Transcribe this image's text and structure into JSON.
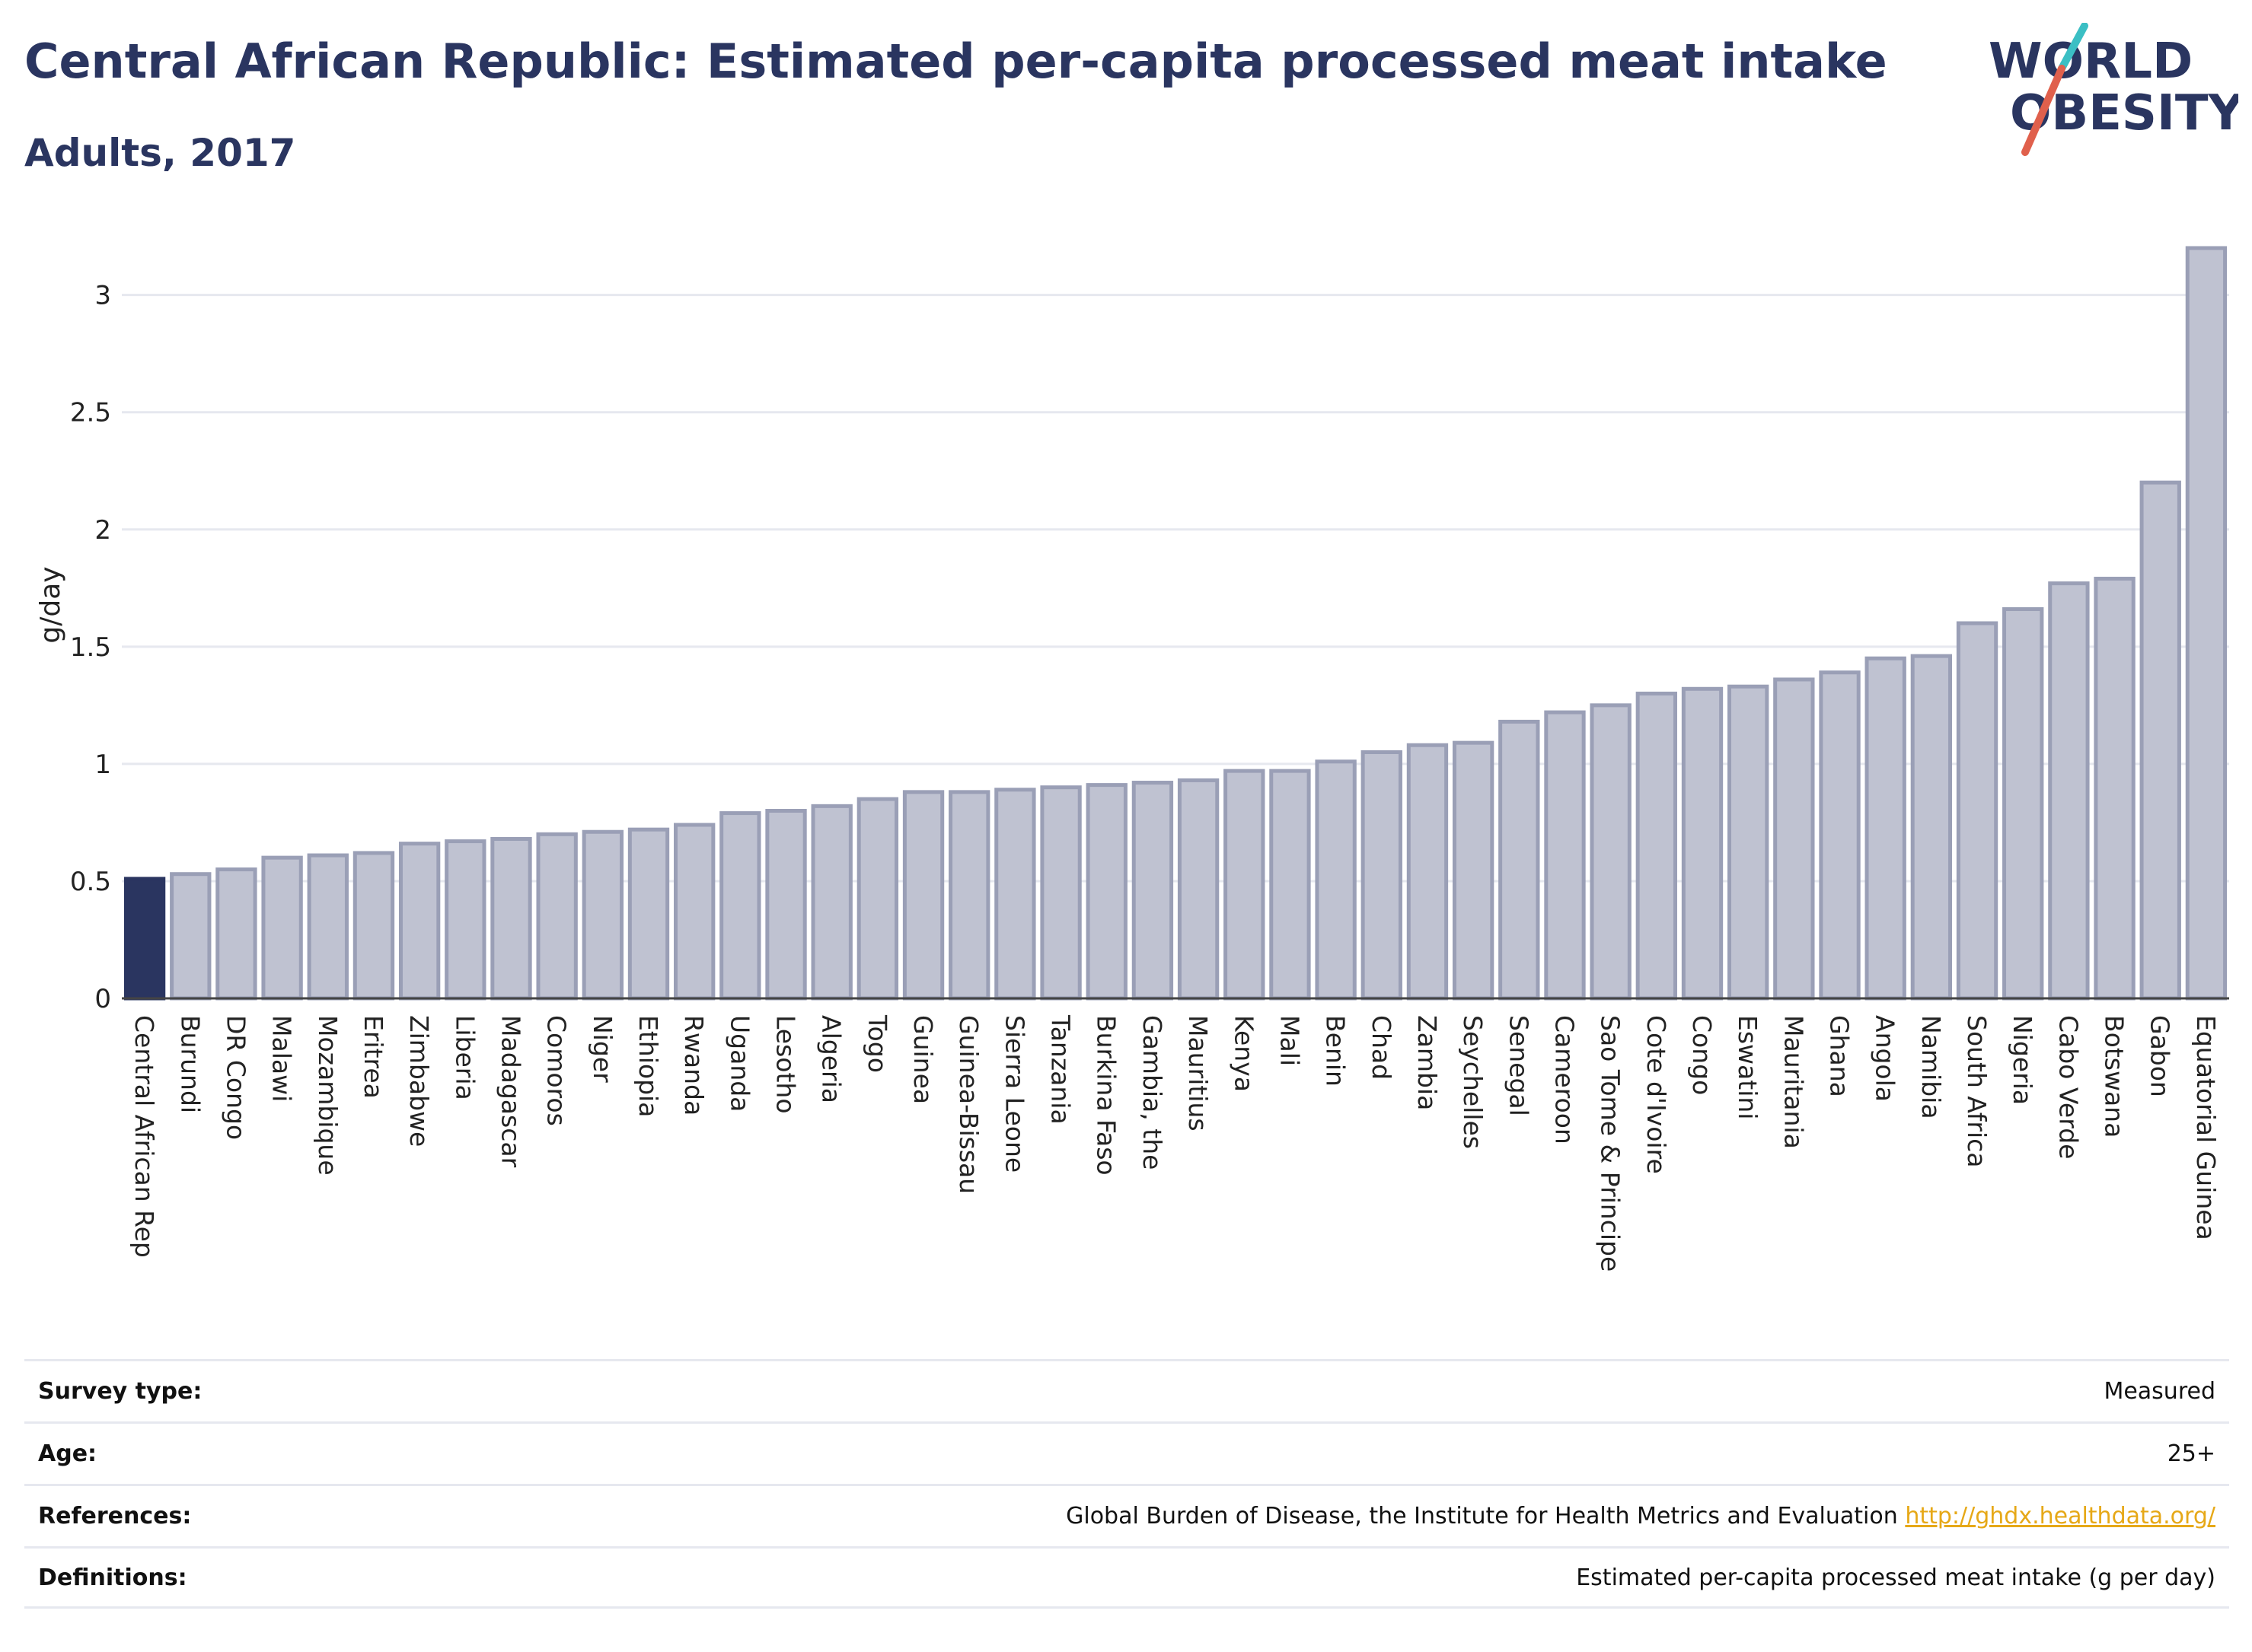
{
  "header": {
    "title": "Central African Republic: Estimated per-capita processed meat intake",
    "subtitle": "Adults, 2017"
  },
  "logo": {
    "line1": "WORLD",
    "line2": "OBESITY"
  },
  "colors": {
    "highlight": "#2a3560",
    "bar": "#bfc2d1",
    "bar_stroke": "#9a9fb6",
    "grid": "#e6e8ef",
    "link": "#e6a817"
  },
  "chart_data": {
    "type": "bar",
    "ylabel": "g/day",
    "ylim": [
      0,
      3.2
    ],
    "yticks": [
      0,
      0.5,
      1,
      1.5,
      2,
      2.5,
      3
    ],
    "highlight_category": "Central African Rep",
    "categories": [
      "Central African Rep",
      "Burundi",
      "DR Congo",
      "Malawi",
      "Mozambique",
      "Eritrea",
      "Zimbabwe",
      "Liberia",
      "Madagascar",
      "Comoros",
      "Niger",
      "Ethiopia",
      "Rwanda",
      "Uganda",
      "Lesotho",
      "Algeria",
      "Togo",
      "Guinea",
      "Guinea-Bissau",
      "Sierra Leone",
      "Tanzania",
      "Burkina Faso",
      "Gambia, the",
      "Mauritius",
      "Kenya",
      "Mali",
      "Benin",
      "Chad",
      "Zambia",
      "Seychelles",
      "Senegal",
      "Cameroon",
      "Sao Tome & Principe",
      "Cote d'Ivoire",
      "Congo",
      "Eswatini",
      "Mauritania",
      "Ghana",
      "Angola",
      "Namibia",
      "South Africa",
      "Nigeria",
      "Cabo Verde",
      "Botswana",
      "Gabon",
      "Equatorial Guinea"
    ],
    "values": [
      0.51,
      0.53,
      0.55,
      0.6,
      0.61,
      0.62,
      0.66,
      0.67,
      0.68,
      0.7,
      0.71,
      0.72,
      0.74,
      0.79,
      0.8,
      0.82,
      0.85,
      0.88,
      0.88,
      0.89,
      0.9,
      0.91,
      0.92,
      0.93,
      0.97,
      0.97,
      1.01,
      1.05,
      1.08,
      1.09,
      1.18,
      1.22,
      1.25,
      1.3,
      1.32,
      1.33,
      1.36,
      1.39,
      1.45,
      1.46,
      1.6,
      1.66,
      1.77,
      1.79,
      2.2,
      3.2
    ]
  },
  "info": [
    {
      "key": "Survey type:",
      "value": "Measured"
    },
    {
      "key": "Age:",
      "value": "25+"
    },
    {
      "key": "References:",
      "value": "Global Burden of Disease, the Institute for Health Metrics and Evaluation",
      "link": "http://ghdx.healthdata.org/"
    },
    {
      "key": "Definitions:",
      "value": "Estimated per-capita processed meat intake (g per day)"
    }
  ]
}
